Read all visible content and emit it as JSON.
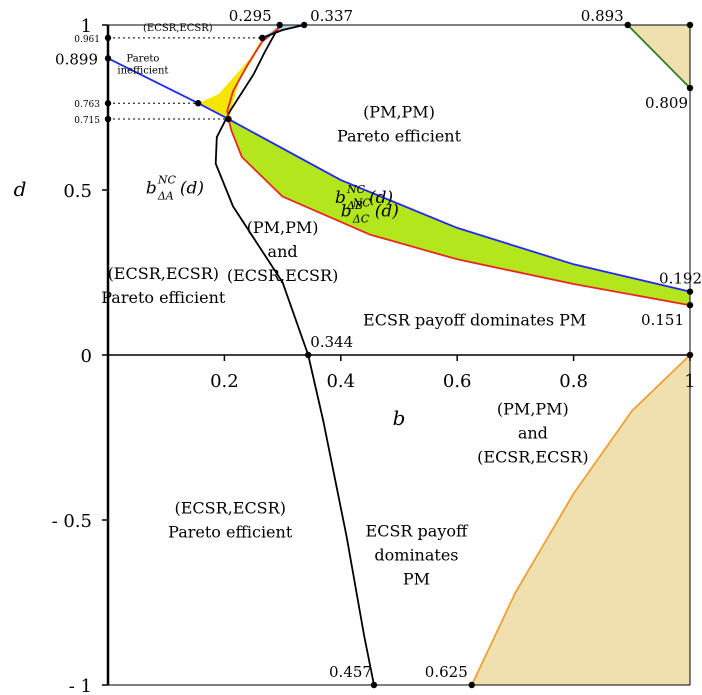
{
  "chart_data": {
    "type": "line",
    "xlabel": "b",
    "ylabel": "d",
    "xlim": [
      0,
      1
    ],
    "ylim": [
      -1,
      1
    ],
    "x_ticks": [
      {
        "value": 0.2,
        "label": "0.2"
      },
      {
        "value": 0.4,
        "label": "0.4"
      },
      {
        "value": 0.6,
        "label": "0.6"
      },
      {
        "value": 0.8,
        "label": "0.8"
      },
      {
        "value": 1,
        "label": "1"
      }
    ],
    "y_ticks": [
      {
        "value": 1,
        "label": "1"
      },
      {
        "value": 0.5,
        "label": "0.5"
      },
      {
        "value": 0,
        "label": "0"
      },
      {
        "value": -0.5,
        "label": "- 0.5"
      },
      {
        "value": -1,
        "label": "- 1"
      }
    ],
    "y_ticks_small": [
      {
        "value": 0.961,
        "label": "0.961"
      },
      {
        "value": 0.763,
        "label": "0.763"
      },
      {
        "value": 0.715,
        "label": "0.715"
      }
    ],
    "curves": [
      {
        "name": "b^NC_ΔA(d)",
        "name_main": "b",
        "name_sup": "NC",
        "name_sub": "ΔA",
        "name_arg": "(d)",
        "color": "#000000",
        "points": [
          [
            0.457,
            -1
          ],
          [
            0.44,
            -0.85
          ],
          [
            0.41,
            -0.55
          ],
          [
            0.37,
            -0.2
          ],
          [
            0.344,
            0
          ],
          [
            0.3,
            0.22
          ],
          [
            0.215,
            0.45
          ],
          [
            0.185,
            0.58
          ],
          [
            0.187,
            0.66
          ],
          [
            0.21,
            0.74
          ],
          [
            0.25,
            0.85
          ],
          [
            0.27,
            0.92
          ],
          [
            0.295,
            1
          ]
        ]
      },
      {
        "name": "b^NC_ΔB(d)",
        "name_main": "b",
        "name_sup": "NC",
        "name_sub": "ΔB",
        "name_arg": "(d)",
        "color": "#e8281e",
        "points": [
          [
            0.207,
            0.715
          ],
          [
            0.212,
            0.68
          ],
          [
            0.23,
            0.6
          ],
          [
            0.3,
            0.48
          ],
          [
            0.45,
            0.365
          ],
          [
            0.6,
            0.29
          ],
          [
            0.8,
            0.215
          ],
          [
            1,
            0.151
          ]
        ]
      },
      {
        "name": "b^NC_ΔC(d)",
        "name_main": "b",
        "name_sup": "NC",
        "name_sub": "ΔC",
        "name_arg": "(d)",
        "color": "#1e28ff",
        "points": [
          [
            0,
            0.899
          ],
          [
            0.155,
            0.763
          ],
          [
            0.207,
            0.715
          ],
          [
            0.4,
            0.53
          ],
          [
            0.6,
            0.385
          ],
          [
            0.8,
            0.275
          ],
          [
            1,
            0.192
          ]
        ]
      },
      {
        "name": "",
        "color": "#e8281e",
        "points": [
          [
            0.207,
            0.715
          ],
          [
            0.205,
            0.74
          ],
          [
            0.215,
            0.8
          ],
          [
            0.24,
            0.88
          ],
          [
            0.265,
            0.95
          ],
          [
            0.3,
            1
          ]
        ]
      },
      {
        "name": "",
        "color": "#000000",
        "points": [
          [
            0.265,
            0.961
          ],
          [
            0.3,
            0.985
          ],
          [
            0.337,
            1
          ]
        ]
      },
      {
        "name": "",
        "color": "#2e7d1e",
        "points": [
          [
            0.893,
            1
          ],
          [
            1,
            0.809
          ]
        ]
      },
      {
        "name": "",
        "color": "#f0a030",
        "points": [
          [
            0.625,
            -1
          ],
          [
            0.7,
            -0.72
          ],
          [
            0.8,
            -0.42
          ],
          [
            0.9,
            -0.17
          ],
          [
            1,
            0
          ]
        ]
      }
    ],
    "shaded_regions": [
      {
        "color": "#f5e600",
        "points": [
          [
            0.155,
            0.763
          ],
          [
            0.19,
            0.79
          ],
          [
            0.22,
            0.85
          ],
          [
            0.245,
            0.9
          ],
          [
            0.265,
            0.961
          ],
          [
            0.25,
            0.9
          ],
          [
            0.225,
            0.83
          ],
          [
            0.207,
            0.715
          ],
          [
            0.18,
            0.74
          ]
        ]
      },
      {
        "color": "#b4e61e",
        "points": [
          [
            0.207,
            0.715
          ],
          [
            0.4,
            0.53
          ],
          [
            0.6,
            0.385
          ],
          [
            0.8,
            0.275
          ],
          [
            1,
            0.192
          ],
          [
            1,
            0.151
          ],
          [
            0.8,
            0.215
          ],
          [
            0.6,
            0.29
          ],
          [
            0.45,
            0.365
          ],
          [
            0.3,
            0.48
          ],
          [
            0.23,
            0.6
          ],
          [
            0.212,
            0.68
          ]
        ]
      },
      {
        "color": "#add8e6",
        "points": [
          [
            0.265,
            0.961
          ],
          [
            0.295,
            1
          ],
          [
            0.337,
            1
          ],
          [
            0.3,
            0.985
          ]
        ]
      },
      {
        "color": "#f0e0b0",
        "points": [
          [
            0.893,
            1
          ],
          [
            1,
            1
          ],
          [
            1,
            0.809
          ]
        ]
      },
      {
        "color": "#f0e0b0",
        "points": [
          [
            0.625,
            -1
          ],
          [
            0.7,
            -0.72
          ],
          [
            0.8,
            -0.42
          ],
          [
            0.9,
            -0.17
          ],
          [
            1,
            0
          ],
          [
            1,
            -1
          ]
        ]
      }
    ],
    "marked_points": [
      {
        "x": 0.295,
        "y": 1,
        "label": "0.295",
        "anchor": "end",
        "dx": -8,
        "dy": -4
      },
      {
        "x": 0.337,
        "y": 1,
        "label": "0.337",
        "anchor": "start",
        "dx": 6,
        "dy": -4
      },
      {
        "x": 0.893,
        "y": 1,
        "label": "0.893",
        "anchor": "end",
        "dx": -4,
        "dy": -4
      },
      {
        "x": 1,
        "y": 0.809,
        "label": "0.809",
        "anchor": "end",
        "dx": -2,
        "dy": 20
      },
      {
        "x": 0,
        "y": 0.899,
        "label": "0.899",
        "anchor": "end",
        "dx": -10,
        "dy": 6
      },
      {
        "x": 1,
        "y": 0.192,
        "label": "0.192",
        "anchor": "end",
        "dx": 12,
        "dy": -8
      },
      {
        "x": 1,
        "y": 0.151,
        "label": "0.151",
        "anchor": "end",
        "dx": -6,
        "dy": 20
      },
      {
        "x": 0.344,
        "y": 0,
        "label": "0.344",
        "anchor": "start",
        "dx": 2,
        "dy": -8
      },
      {
        "x": 0.457,
        "y": -1,
        "label": "0.457",
        "anchor": "end",
        "dx": -2,
        "dy": -8
      },
      {
        "x": 0.625,
        "y": -1,
        "label": "0.625",
        "anchor": "end",
        "dx": -4,
        "dy": -8
      },
      {
        "x": 0.265,
        "y": 0.961,
        "label": "",
        "anchor": "start",
        "dx": 0,
        "dy": 0
      },
      {
        "x": 0.155,
        "y": 0.763,
        "label": "",
        "anchor": "start",
        "dx": 0,
        "dy": 0
      },
      {
        "x": 0.207,
        "y": 0.715,
        "label": "",
        "anchor": "start",
        "dx": 0,
        "dy": 0
      },
      {
        "x": 1,
        "y": 0,
        "label": "",
        "anchor": "start",
        "dx": 0,
        "dy": 0
      },
      {
        "x": 1,
        "y": 1,
        "label": "",
        "anchor": "start",
        "dx": 0,
        "dy": 0
      },
      {
        "x": 0,
        "y": 0.961,
        "label": "",
        "anchor": "start",
        "dx": 0,
        "dy": 0
      },
      {
        "x": 0,
        "y": 0.763,
        "label": "",
        "anchor": "start",
        "dx": 0,
        "dy": 0
      },
      {
        "x": 0,
        "y": 0.715,
        "label": "",
        "anchor": "start",
        "dx": 0,
        "dy": 0
      }
    ],
    "dotted_guides": [
      {
        "from": [
          0,
          0.961
        ],
        "to": [
          0.265,
          0.961
        ]
      },
      {
        "from": [
          0,
          0.763
        ],
        "to": [
          0.155,
          0.763
        ]
      },
      {
        "from": [
          0,
          0.715
        ],
        "to": [
          0.207,
          0.715
        ]
      }
    ],
    "annotations": [
      {
        "lines": [
          "(PM,PM)",
          "Pareto efficient"
        ],
        "x": 0.5,
        "y": 0.72,
        "size": "normal"
      },
      {
        "lines": [
          "(PM,PM)",
          "and",
          "(ECSR,ECSR)"
        ],
        "x": 0.3,
        "y": 0.37,
        "size": "normal"
      },
      {
        "lines": [
          "ECSR payoff dominates PM"
        ],
        "x": 0.63,
        "y": 0.09,
        "size": "normal"
      },
      {
        "lines": [
          "(ECSR,ECSR)",
          "Pareto efficient"
        ],
        "x": 0.095,
        "y": 0.23,
        "size": "normal"
      },
      {
        "lines": [
          "(PM,PM)",
          "and",
          "(ECSR,ECSR)"
        ],
        "x": 0.73,
        "y": -0.18,
        "size": "normal"
      },
      {
        "lines": [
          "ECSR payoff",
          "dominates",
          "PM"
        ],
        "x": 0.53,
        "y": -0.55,
        "size": "normal"
      },
      {
        "lines": [
          "(ECSR,ECSR)",
          "Pareto efficient"
        ],
        "x": 0.21,
        "y": -0.48,
        "size": "normal"
      },
      {
        "lines": [
          "(ECSR,ECSR)"
        ],
        "x": 0.12,
        "y": 0.982,
        "size": "small"
      },
      {
        "lines": [
          "Pareto",
          "inefficient"
        ],
        "x": 0.06,
        "y": 0.89,
        "size": "small"
      }
    ],
    "curve_labels": [
      {
        "curve": 0,
        "x": 0.065,
        "y": 0.49
      },
      {
        "curve": 1,
        "x": 0.39,
        "y": 0.46
      },
      {
        "curve": 2,
        "x": 0.4,
        "y": 0.42
      }
    ]
  }
}
